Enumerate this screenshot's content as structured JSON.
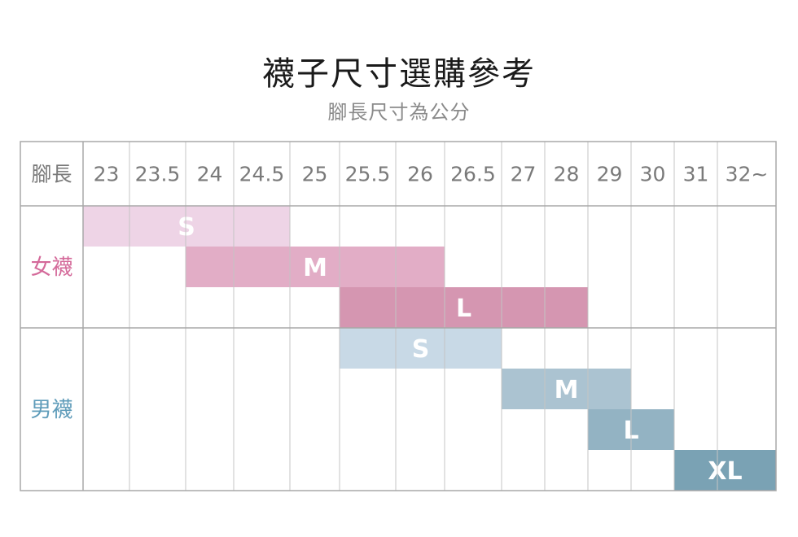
{
  "title": "襪子尺寸選購參考",
  "subtitle": "腳長尺寸為公分",
  "chart_data": {
    "type": "table",
    "header_label": "腳長",
    "columns": [
      "23",
      "23.5",
      "24",
      "24.5",
      "25",
      "25.5",
      "26",
      "26.5",
      "27",
      "28",
      "29",
      "30",
      "31",
      "32~"
    ],
    "groups": [
      {
        "label": "女襪",
        "color": "#d46a9a",
        "rows": [
          {
            "size": "S",
            "from": "23",
            "to": "24.5",
            "color": "#eed4e6"
          },
          {
            "size": "M",
            "from": "24",
            "to": "26",
            "color": "#e2adc6"
          },
          {
            "size": "L",
            "from": "25.5",
            "to": "28",
            "color": "#d596b1"
          }
        ]
      },
      {
        "label": "男襪",
        "color": "#5f9cba",
        "rows": [
          {
            "size": "S",
            "from": "25.5",
            "to": "26.5",
            "color": "#c8d9e6"
          },
          {
            "size": "M",
            "from": "27",
            "to": "29",
            "color": "#abc3d1"
          },
          {
            "size": "L",
            "from": "29",
            "to": "30",
            "color": "#93b3c3"
          },
          {
            "size": "XL",
            "from": "31",
            "to": "32~",
            "color": "#7aa2b4"
          }
        ]
      }
    ]
  }
}
